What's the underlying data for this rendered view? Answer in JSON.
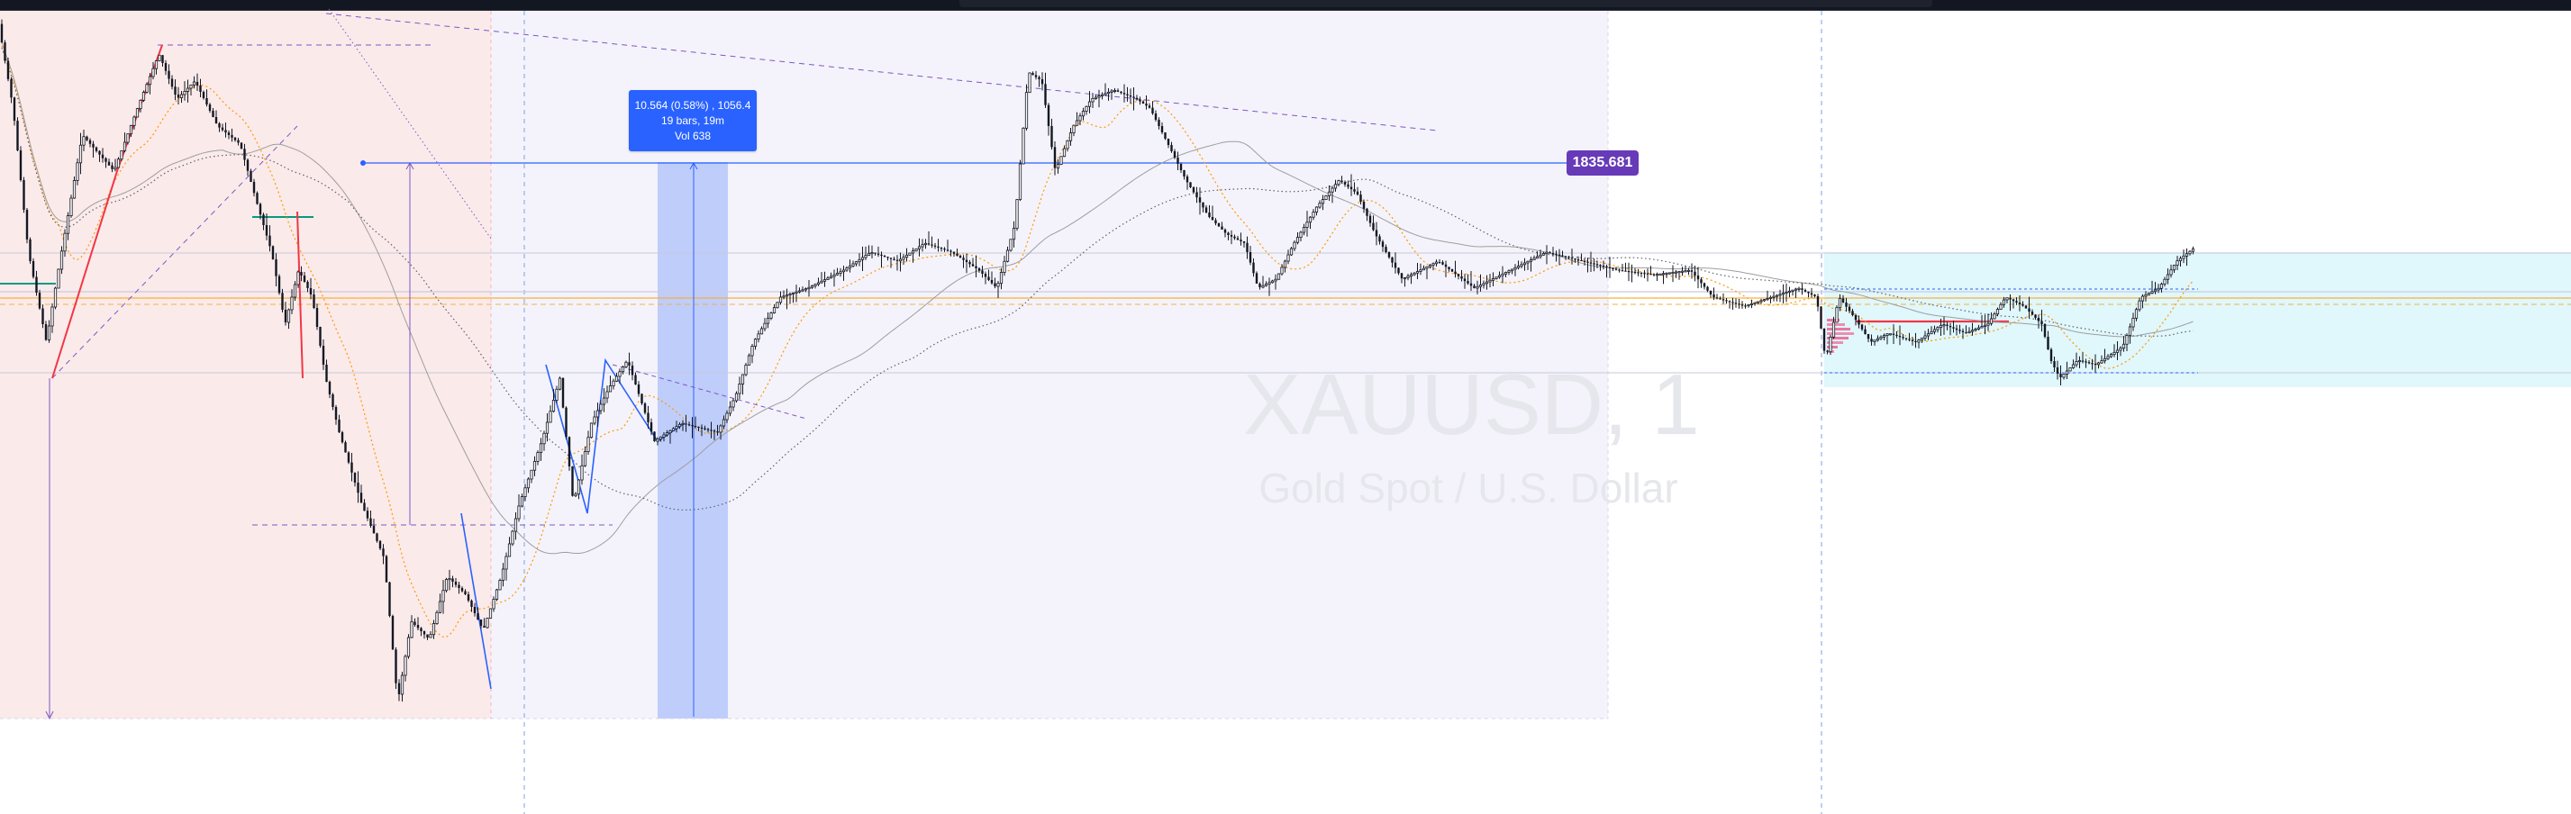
{
  "watermark": {
    "symbol": "XAUUSD, 1",
    "description": "Gold Spot / U.S. Dollar"
  },
  "price_label": "1835.681",
  "measure_tooltip": {
    "line1": "10.564 (0.58%) , 1056.4",
    "line2": "19 bars, 19m",
    "line3": "Vol 638"
  },
  "colors": {
    "candle": "#131722",
    "moving_average_gray": "#9e9e9e",
    "moving_average_dotted": "#5d606b",
    "ema_orange": "#ff9800",
    "drawing_blue": "#2962ff",
    "drawing_purple": "#673ab7",
    "drawing_red": "#f23645",
    "drawing_green": "#089981",
    "zone_red": "#fbeaea",
    "zone_lavender": "#f4f3fb",
    "zone_cyan": "#e0f7fb",
    "range_highlight": "#bfcdfb"
  },
  "chart_data": {
    "type": "candlestick",
    "symbol": "XAUUSD",
    "timeframe": "1",
    "labeled_price_levels": [
      1835.681
    ],
    "measure": {
      "price_change": 10.564,
      "percent_change": 0.58,
      "ticks": 1056.4,
      "bars": 19,
      "duration": "19m",
      "volume": 638
    },
    "y_axis_visible": false,
    "x_axis_visible": false,
    "grid": false,
    "overlays": [
      "moving average (gray)",
      "moving average (dotted)",
      "EMA (orange dotted)"
    ]
  }
}
